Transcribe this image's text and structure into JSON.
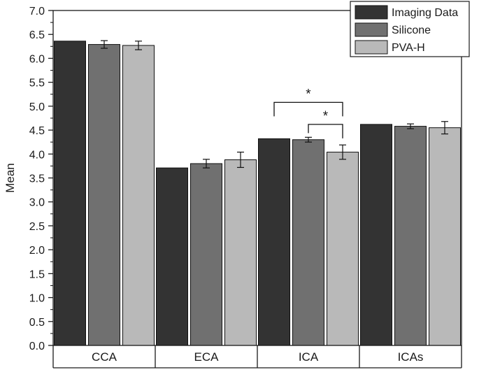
{
  "chart_data": {
    "type": "bar",
    "title": "",
    "xlabel": "",
    "ylabel": "Mean",
    "ylim": [
      0,
      7.0
    ],
    "yticks": [
      0.0,
      0.5,
      1.0,
      1.5,
      2.0,
      2.5,
      3.0,
      3.5,
      4.0,
      4.5,
      5.0,
      5.5,
      6.0,
      6.5,
      7.0
    ],
    "ytick_labels": [
      "0.0",
      "0.5",
      "1.0",
      "1.5",
      "2.0",
      "2.5",
      "3.0",
      "3.5",
      "4.0",
      "4.5",
      "5.0",
      "5.5",
      "6.0",
      "6.5",
      "7.0"
    ],
    "categories": [
      "CCA",
      "ECA",
      "ICA",
      "ICAs"
    ],
    "series": [
      {
        "name": "Imaging Data",
        "color": "#333333",
        "values": [
          6.36,
          3.71,
          4.32,
          4.62
        ],
        "errors": [
          0,
          0,
          0,
          0
        ]
      },
      {
        "name": "Silicone",
        "color": "#707070",
        "values": [
          6.29,
          3.8,
          4.3,
          4.58
        ],
        "errors": [
          0.08,
          0.09,
          0.05,
          0.05
        ]
      },
      {
        "name": "PVA-H",
        "color": "#b9b9b9",
        "values": [
          6.27,
          3.88,
          4.04,
          4.55
        ],
        "errors": [
          0.09,
          0.16,
          0.15,
          0.13
        ]
      }
    ],
    "legend_position": "top-right",
    "grid": false,
    "annotations": [
      {
        "label": "*",
        "category": "ICA",
        "from_series": "Imaging Data",
        "to_series": "PVA-H",
        "y": 5.08
      },
      {
        "label": "*",
        "category": "ICA",
        "from_series": "Silicone",
        "to_series": "PVA-H",
        "y": 4.62
      }
    ]
  }
}
